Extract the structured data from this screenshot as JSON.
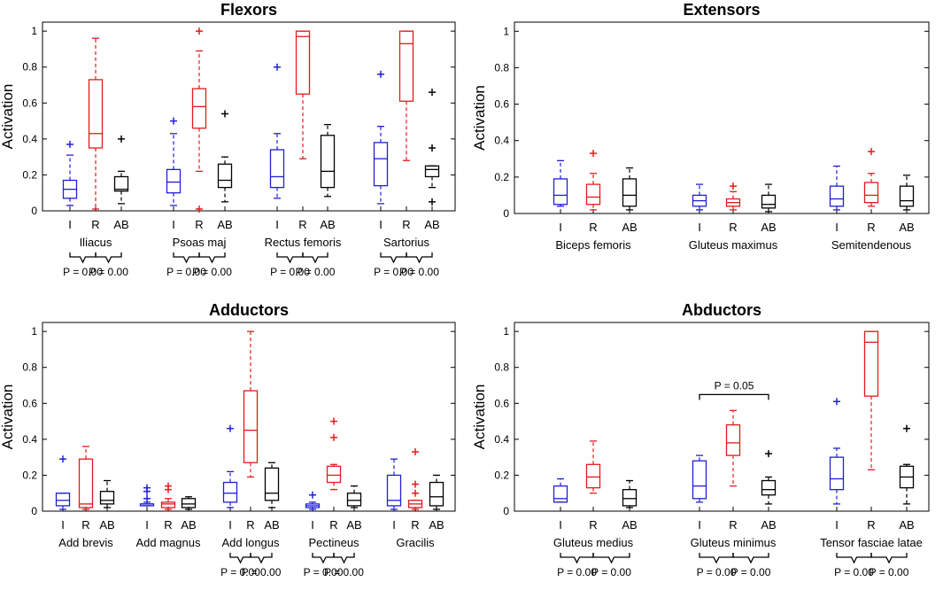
{
  "chart_data": [
    {
      "type": "box",
      "title": "Flexors",
      "ylabel": "Activation",
      "ylim": [
        0,
        1.05
      ],
      "yticks": [
        "0",
        "0.2",
        "0.4",
        "0.6",
        "0.8",
        "1"
      ],
      "group_labels": [
        "I",
        "R",
        "AB"
      ],
      "series_colors": [
        "#1f1fd6",
        "#e41a1a",
        "#000000"
      ],
      "muscles": [
        {
          "name": "Iliacus",
          "boxes": [
            {
              "group": "I",
              "min": 0.03,
              "q1": 0.07,
              "median": 0.12,
              "q3": 0.17,
              "max": 0.31,
              "outliers": [
                0.37
              ]
            },
            {
              "group": "R",
              "min": 0.01,
              "q1": 0.35,
              "median": 0.43,
              "q3": 0.73,
              "max": 0.96,
              "outliers": []
            },
            {
              "group": "AB",
              "min": 0.04,
              "q1": 0.11,
              "median": 0.12,
              "q3": 0.19,
              "max": 0.22,
              "outliers": [
                0.4
              ]
            }
          ],
          "comparisons": [
            {
              "from": "I",
              "to": "R",
              "label": "P = 0.00"
            },
            {
              "from": "R",
              "to": "AB",
              "label": "P = 0.00"
            }
          ]
        },
        {
          "name": "Psoas maj",
          "boxes": [
            {
              "group": "I",
              "min": 0.03,
              "q1": 0.1,
              "median": 0.16,
              "q3": 0.23,
              "max": 0.43,
              "outliers": [
                0.5
              ]
            },
            {
              "group": "R",
              "min": 0.22,
              "q1": 0.46,
              "median": 0.58,
              "q3": 0.68,
              "max": 0.89,
              "outliers": [
                1.0,
                0.01
              ]
            },
            {
              "group": "AB",
              "min": 0.05,
              "q1": 0.13,
              "median": 0.17,
              "q3": 0.26,
              "max": 0.3,
              "outliers": [
                0.54
              ]
            }
          ],
          "comparisons": [
            {
              "from": "I",
              "to": "R",
              "label": "P = 0.00"
            },
            {
              "from": "R",
              "to": "AB",
              "label": "P = 0.00"
            }
          ]
        },
        {
          "name": "Rectus femoris",
          "boxes": [
            {
              "group": "I",
              "min": 0.07,
              "q1": 0.13,
              "median": 0.19,
              "q3": 0.34,
              "max": 0.43,
              "outliers": [
                0.8
              ]
            },
            {
              "group": "R",
              "min": 0.29,
              "q1": 0.65,
              "median": 0.97,
              "q3": 1.0,
              "max": 1.0,
              "outliers": []
            },
            {
              "group": "AB",
              "min": 0.08,
              "q1": 0.13,
              "median": 0.22,
              "q3": 0.42,
              "max": 0.48,
              "outliers": []
            }
          ],
          "comparisons": [
            {
              "from": "I",
              "to": "R",
              "label": "P = 0.00"
            },
            {
              "from": "R",
              "to": "AB",
              "label": "P = 0.00"
            }
          ]
        },
        {
          "name": "Sartorius",
          "boxes": [
            {
              "group": "I",
              "min": 0.04,
              "q1": 0.14,
              "median": 0.29,
              "q3": 0.38,
              "max": 0.47,
              "outliers": [
                0.76
              ]
            },
            {
              "group": "R",
              "min": 0.28,
              "q1": 0.61,
              "median": 0.93,
              "q3": 1.0,
              "max": 1.0,
              "outliers": []
            },
            {
              "group": "AB",
              "min": 0.13,
              "q1": 0.19,
              "median": 0.23,
              "q3": 0.25,
              "max": 0.25,
              "outliers": [
                0.66,
                0.35,
                0.05
              ]
            }
          ],
          "comparisons": [
            {
              "from": "I",
              "to": "R",
              "label": "P = 0.00"
            },
            {
              "from": "R",
              "to": "AB",
              "label": "P = 0.00"
            }
          ]
        }
      ]
    },
    {
      "type": "box",
      "title": "Extensors",
      "ylabel": "Activation",
      "ylim": [
        0,
        1.05
      ],
      "yticks": [
        "0",
        "0.2",
        "0.4",
        "0.6",
        "0.8",
        "1"
      ],
      "group_labels": [
        "I",
        "R",
        "AB"
      ],
      "series_colors": [
        "#1f1fd6",
        "#e41a1a",
        "#000000"
      ],
      "muscles": [
        {
          "name": "Biceps femoris",
          "boxes": [
            {
              "group": "I",
              "min": 0.04,
              "q1": 0.05,
              "median": 0.1,
              "q3": 0.19,
              "max": 0.29,
              "outliers": []
            },
            {
              "group": "R",
              "min": 0.02,
              "q1": 0.05,
              "median": 0.09,
              "q3": 0.16,
              "max": 0.22,
              "outliers": [
                0.33
              ]
            },
            {
              "group": "AB",
              "min": 0.02,
              "q1": 0.04,
              "median": 0.1,
              "q3": 0.19,
              "max": 0.25,
              "outliers": []
            }
          ],
          "comparisons": []
        },
        {
          "name": "Gluteus maximus",
          "boxes": [
            {
              "group": "I",
              "min": 0.02,
              "q1": 0.04,
              "median": 0.07,
              "q3": 0.1,
              "max": 0.16,
              "outliers": []
            },
            {
              "group": "R",
              "min": 0.02,
              "q1": 0.04,
              "median": 0.06,
              "q3": 0.08,
              "max": 0.12,
              "outliers": [
                0.15
              ]
            },
            {
              "group": "AB",
              "min": 0.01,
              "q1": 0.03,
              "median": 0.05,
              "q3": 0.1,
              "max": 0.16,
              "outliers": []
            }
          ],
          "comparisons": []
        },
        {
          "name": "Semitendenous",
          "boxes": [
            {
              "group": "I",
              "min": 0.02,
              "q1": 0.04,
              "median": 0.08,
              "q3": 0.15,
              "max": 0.26,
              "outliers": []
            },
            {
              "group": "R",
              "min": 0.04,
              "q1": 0.06,
              "median": 0.1,
              "q3": 0.17,
              "max": 0.22,
              "outliers": [
                0.34
              ]
            },
            {
              "group": "AB",
              "min": 0.02,
              "q1": 0.04,
              "median": 0.07,
              "q3": 0.15,
              "max": 0.21,
              "outliers": []
            }
          ],
          "comparisons": []
        }
      ]
    },
    {
      "type": "box",
      "title": "Adductors",
      "ylabel": "Activation",
      "ylim": [
        0,
        1.05
      ],
      "yticks": [
        "0",
        "0.2",
        "0.4",
        "0.6",
        "0.8",
        "1"
      ],
      "group_labels": [
        "I",
        "R",
        "AB"
      ],
      "series_colors": [
        "#1f1fd6",
        "#e41a1a",
        "#000000"
      ],
      "muscles": [
        {
          "name": "Add brevis",
          "boxes": [
            {
              "group": "I",
              "min": 0.01,
              "q1": 0.03,
              "median": 0.06,
              "q3": 0.1,
              "max": 0.1,
              "outliers": [
                0.29
              ]
            },
            {
              "group": "R",
              "min": 0.01,
              "q1": 0.02,
              "median": 0.04,
              "q3": 0.29,
              "max": 0.36,
              "outliers": []
            },
            {
              "group": "AB",
              "min": 0.02,
              "q1": 0.04,
              "median": 0.06,
              "q3": 0.11,
              "max": 0.17,
              "outliers": []
            }
          ],
          "comparisons": []
        },
        {
          "name": "Add magnus",
          "boxes": [
            {
              "group": "I",
              "min": 0.03,
              "q1": 0.03,
              "median": 0.04,
              "q3": 0.04,
              "max": 0.05,
              "outliers": [
                0.13,
                0.11,
                0.07
              ]
            },
            {
              "group": "R",
              "min": 0.01,
              "q1": 0.02,
              "median": 0.04,
              "q3": 0.05,
              "max": 0.07,
              "outliers": [
                0.14,
                0.12
              ]
            },
            {
              "group": "AB",
              "min": 0.01,
              "q1": 0.02,
              "median": 0.04,
              "q3": 0.07,
              "max": 0.08,
              "outliers": []
            }
          ],
          "comparisons": []
        },
        {
          "name": "Add longus",
          "boxes": [
            {
              "group": "I",
              "min": 0.02,
              "q1": 0.05,
              "median": 0.1,
              "q3": 0.16,
              "max": 0.22,
              "outliers": [
                0.46
              ]
            },
            {
              "group": "R",
              "min": 0.19,
              "q1": 0.27,
              "median": 0.45,
              "q3": 0.67,
              "max": 1.0,
              "outliers": []
            },
            {
              "group": "AB",
              "min": 0.02,
              "q1": 0.06,
              "median": 0.1,
              "q3": 0.24,
              "max": 0.27,
              "outliers": []
            }
          ],
          "comparisons": [
            {
              "from": "I",
              "to": "R",
              "label": "P = 0.00"
            },
            {
              "from": "R",
              "to": "AB",
              "label": "P = 0.00"
            }
          ]
        },
        {
          "name": "Pectineus",
          "boxes": [
            {
              "group": "I",
              "min": 0.01,
              "q1": 0.02,
              "median": 0.03,
              "q3": 0.04,
              "max": 0.05,
              "outliers": [
                0.09
              ]
            },
            {
              "group": "R",
              "min": 0.12,
              "q1": 0.16,
              "median": 0.2,
              "q3": 0.25,
              "max": 0.26,
              "outliers": [
                0.5,
                0.41
              ]
            },
            {
              "group": "AB",
              "min": 0.02,
              "q1": 0.03,
              "median": 0.06,
              "q3": 0.1,
              "max": 0.14,
              "outliers": []
            }
          ],
          "comparisons": [
            {
              "from": "I",
              "to": "R",
              "label": "P = 0.00"
            },
            {
              "from": "R",
              "to": "AB",
              "label": "P = 0.00"
            }
          ]
        },
        {
          "name": "Gracilis",
          "boxes": [
            {
              "group": "I",
              "min": 0.01,
              "q1": 0.03,
              "median": 0.06,
              "q3": 0.2,
              "max": 0.29,
              "outliers": []
            },
            {
              "group": "R",
              "min": 0.01,
              "q1": 0.02,
              "median": 0.04,
              "q3": 0.06,
              "max": 0.06,
              "outliers": [
                0.33,
                0.15,
                0.1
              ]
            },
            {
              "group": "AB",
              "min": 0.01,
              "q1": 0.03,
              "median": 0.08,
              "q3": 0.16,
              "max": 0.2,
              "outliers": []
            }
          ],
          "comparisons": []
        }
      ]
    },
    {
      "type": "box",
      "title": "Abductors",
      "ylabel": "Activation",
      "ylim": [
        0,
        1.05
      ],
      "yticks": [
        "0",
        "0.2",
        "0.4",
        "0.6",
        "0.8",
        "1"
      ],
      "group_labels": [
        "I",
        "R",
        "AB"
      ],
      "series_colors": [
        "#1f1fd6",
        "#e41a1a",
        "#000000"
      ],
      "muscles": [
        {
          "name": "Gluteus medius",
          "boxes": [
            {
              "group": "I",
              "min": 0.05,
              "q1": 0.05,
              "median": 0.07,
              "q3": 0.14,
              "max": 0.18,
              "outliers": []
            },
            {
              "group": "R",
              "min": 0.1,
              "q1": 0.13,
              "median": 0.19,
              "q3": 0.26,
              "max": 0.39,
              "outliers": []
            },
            {
              "group": "AB",
              "min": 0.02,
              "q1": 0.03,
              "median": 0.07,
              "q3": 0.12,
              "max": 0.17,
              "outliers": []
            }
          ],
          "comparisons": [
            {
              "from": "I",
              "to": "R",
              "label": "P = 0.00"
            },
            {
              "from": "R",
              "to": "AB",
              "label": "P = 0.00"
            }
          ]
        },
        {
          "name": "Gluteus minimus",
          "boxes": [
            {
              "group": "I",
              "min": 0.05,
              "q1": 0.07,
              "median": 0.14,
              "q3": 0.28,
              "max": 0.31,
              "outliers": []
            },
            {
              "group": "R",
              "min": 0.14,
              "q1": 0.31,
              "median": 0.38,
              "q3": 0.48,
              "max": 0.56,
              "outliers": []
            },
            {
              "group": "AB",
              "min": 0.04,
              "q1": 0.09,
              "median": 0.12,
              "q3": 0.17,
              "max": 0.19,
              "outliers": [
                0.32
              ]
            }
          ],
          "comparisons": [
            {
              "from": "I",
              "to": "R",
              "label": "P = 0.00"
            },
            {
              "from": "R",
              "to": "AB",
              "label": "P = 0.00"
            },
            {
              "from": "I",
              "to": "AB",
              "label": "P = 0.05"
            }
          ]
        },
        {
          "name": "Tensor fasciae latae",
          "boxes": [
            {
              "group": "I",
              "min": 0.04,
              "q1": 0.12,
              "median": 0.18,
              "q3": 0.3,
              "max": 0.35,
              "outliers": [
                0.61
              ]
            },
            {
              "group": "R",
              "min": 0.23,
              "q1": 0.64,
              "median": 0.94,
              "q3": 1.0,
              "max": 1.0,
              "outliers": []
            },
            {
              "group": "AB",
              "min": 0.04,
              "q1": 0.13,
              "median": 0.19,
              "q3": 0.25,
              "max": 0.26,
              "outliers": [
                0.46
              ]
            }
          ],
          "comparisons": [
            {
              "from": "I",
              "to": "R",
              "label": "P = 0.00"
            },
            {
              "from": "R",
              "to": "AB",
              "label": "P = 0.00"
            }
          ]
        }
      ]
    }
  ]
}
